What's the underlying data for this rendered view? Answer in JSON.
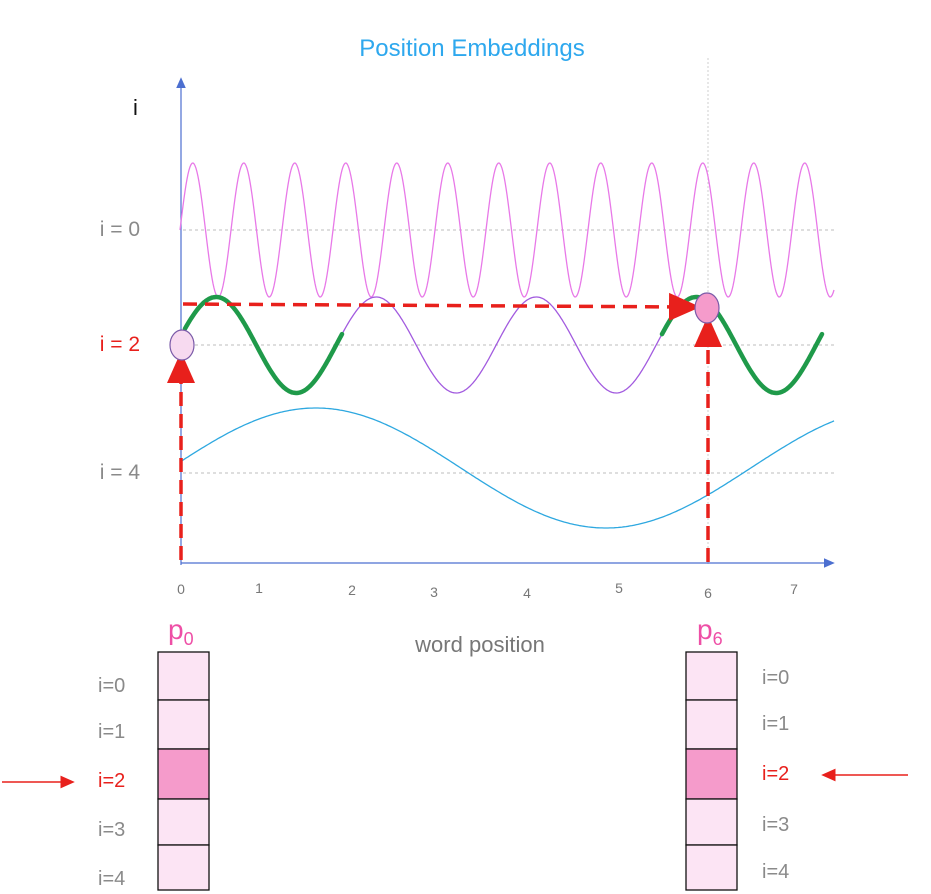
{
  "title": "Position Embeddings",
  "axis_i_label": "i",
  "xlabel": "word position",
  "levels": [
    {
      "label": "i = 0",
      "highlight": false
    },
    {
      "label": "i = 2",
      "highlight": true
    },
    {
      "label": "i = 4",
      "highlight": false
    }
  ],
  "x_ticks": [
    "0",
    "1",
    "2",
    "3",
    "4",
    "5",
    "6",
    "7"
  ],
  "vector_left": {
    "base": "p",
    "sub": "0",
    "rows": [
      "i=0",
      "i=1",
      "i=2",
      "i=3",
      "i=4"
    ],
    "highlight_row": 2
  },
  "vector_right": {
    "base": "p",
    "sub": "6",
    "rows": [
      "i=0",
      "i=1",
      "i=2",
      "i=3",
      "i=4"
    ],
    "highlight_row": 2
  },
  "colors": {
    "title": "#2EA8EE",
    "axis": "#4C6FD0",
    "wave_i0": "#E879E8",
    "wave_i2": "#A25BDF",
    "wave_i2_highlight": "#1F9A4A",
    "wave_i4": "#2EA8E0",
    "marker": "#E8201C",
    "cell_fill": "#FCE4F4",
    "cell_fill_hi": "#F59BCB",
    "dot_left": "#F7DAF0",
    "dot_right": "#F59BCB"
  }
}
